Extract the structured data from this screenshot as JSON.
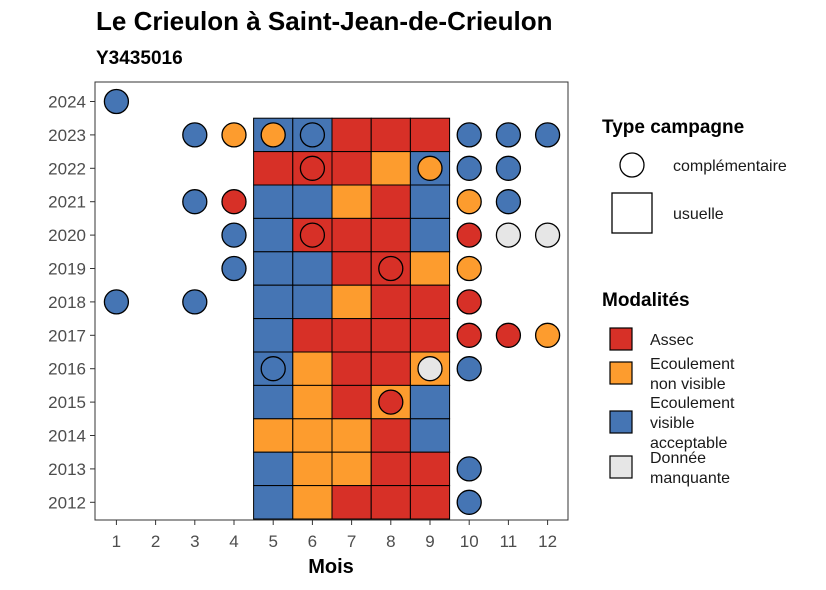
{
  "chart_data": {
    "type": "heatmap",
    "title": "Le Crieulon à Saint-Jean-de-Crieulon",
    "subtitle": "Y3435016",
    "xlabel": "Mois",
    "ylabel": "",
    "x_ticks": [
      "1",
      "2",
      "3",
      "4",
      "5",
      "6",
      "7",
      "8",
      "9",
      "10",
      "11",
      "12"
    ],
    "y_ticks": [
      "2012",
      "2013",
      "2014",
      "2015",
      "2016",
      "2017",
      "2018",
      "2019",
      "2020",
      "2021",
      "2022",
      "2023",
      "2024"
    ],
    "colors": {
      "Assec": "#d73027",
      "Ecoulement non visible": "#fd9c2e",
      "Ecoulement visible acceptable": "#4575b4",
      "Donnée manquante": "#e6e6e6"
    },
    "legend_type": {
      "title": "Type campagne",
      "items": [
        {
          "label": "complémentaire",
          "shape": "circle"
        },
        {
          "label": "usuelle",
          "shape": "square"
        }
      ]
    },
    "legend_modalites": {
      "title": "Modalités",
      "items": [
        {
          "key": "Assec",
          "lines": [
            "Assec"
          ]
        },
        {
          "key": "Ecoulement non visible",
          "lines": [
            "Ecoulement",
            "non visible"
          ]
        },
        {
          "key": "Ecoulement visible acceptable",
          "lines": [
            "Ecoulement",
            "visible",
            "acceptable"
          ]
        },
        {
          "key": "Donnée manquante",
          "lines": [
            "Donnée",
            "manquante"
          ]
        }
      ]
    },
    "usuelle": [
      {
        "year": 2023,
        "month": 5,
        "value": "Ecoulement visible acceptable"
      },
      {
        "year": 2023,
        "month": 6,
        "value": "Ecoulement visible acceptable"
      },
      {
        "year": 2023,
        "month": 7,
        "value": "Assec"
      },
      {
        "year": 2023,
        "month": 8,
        "value": "Assec"
      },
      {
        "year": 2023,
        "month": 9,
        "value": "Assec"
      },
      {
        "year": 2022,
        "month": 5,
        "value": "Assec"
      },
      {
        "year": 2022,
        "month": 6,
        "value": "Assec"
      },
      {
        "year": 2022,
        "month": 7,
        "value": "Assec"
      },
      {
        "year": 2022,
        "month": 8,
        "value": "Ecoulement non visible"
      },
      {
        "year": 2022,
        "month": 9,
        "value": "Ecoulement visible acceptable"
      },
      {
        "year": 2021,
        "month": 5,
        "value": "Ecoulement visible acceptable"
      },
      {
        "year": 2021,
        "month": 6,
        "value": "Ecoulement visible acceptable"
      },
      {
        "year": 2021,
        "month": 7,
        "value": "Ecoulement non visible"
      },
      {
        "year": 2021,
        "month": 8,
        "value": "Assec"
      },
      {
        "year": 2021,
        "month": 9,
        "value": "Ecoulement visible acceptable"
      },
      {
        "year": 2020,
        "month": 5,
        "value": "Ecoulement visible acceptable"
      },
      {
        "year": 2020,
        "month": 6,
        "value": "Assec"
      },
      {
        "year": 2020,
        "month": 7,
        "value": "Assec"
      },
      {
        "year": 2020,
        "month": 8,
        "value": "Assec"
      },
      {
        "year": 2020,
        "month": 9,
        "value": "Ecoulement visible acceptable"
      },
      {
        "year": 2019,
        "month": 5,
        "value": "Ecoulement visible acceptable"
      },
      {
        "year": 2019,
        "month": 6,
        "value": "Ecoulement visible acceptable"
      },
      {
        "year": 2019,
        "month": 7,
        "value": "Assec"
      },
      {
        "year": 2019,
        "month": 8,
        "value": "Assec"
      },
      {
        "year": 2019,
        "month": 9,
        "value": "Ecoulement non visible"
      },
      {
        "year": 2018,
        "month": 5,
        "value": "Ecoulement visible acceptable"
      },
      {
        "year": 2018,
        "month": 6,
        "value": "Ecoulement visible acceptable"
      },
      {
        "year": 2018,
        "month": 7,
        "value": "Ecoulement non visible"
      },
      {
        "year": 2018,
        "month": 8,
        "value": "Assec"
      },
      {
        "year": 2018,
        "month": 9,
        "value": "Assec"
      },
      {
        "year": 2017,
        "month": 5,
        "value": "Ecoulement visible acceptable"
      },
      {
        "year": 2017,
        "month": 6,
        "value": "Assec"
      },
      {
        "year": 2017,
        "month": 7,
        "value": "Assec"
      },
      {
        "year": 2017,
        "month": 8,
        "value": "Assec"
      },
      {
        "year": 2017,
        "month": 9,
        "value": "Assec"
      },
      {
        "year": 2016,
        "month": 5,
        "value": "Ecoulement visible acceptable"
      },
      {
        "year": 2016,
        "month": 6,
        "value": "Ecoulement non visible"
      },
      {
        "year": 2016,
        "month": 7,
        "value": "Assec"
      },
      {
        "year": 2016,
        "month": 8,
        "value": "Assec"
      },
      {
        "year": 2016,
        "month": 9,
        "value": "Ecoulement non visible"
      },
      {
        "year": 2015,
        "month": 5,
        "value": "Ecoulement visible acceptable"
      },
      {
        "year": 2015,
        "month": 6,
        "value": "Ecoulement non visible"
      },
      {
        "year": 2015,
        "month": 7,
        "value": "Assec"
      },
      {
        "year": 2015,
        "month": 8,
        "value": "Ecoulement non visible"
      },
      {
        "year": 2015,
        "month": 9,
        "value": "Ecoulement visible acceptable"
      },
      {
        "year": 2014,
        "month": 5,
        "value": "Ecoulement non visible"
      },
      {
        "year": 2014,
        "month": 6,
        "value": "Ecoulement non visible"
      },
      {
        "year": 2014,
        "month": 7,
        "value": "Ecoulement non visible"
      },
      {
        "year": 2014,
        "month": 8,
        "value": "Assec"
      },
      {
        "year": 2014,
        "month": 9,
        "value": "Ecoulement visible acceptable"
      },
      {
        "year": 2013,
        "month": 5,
        "value": "Ecoulement visible acceptable"
      },
      {
        "year": 2013,
        "month": 6,
        "value": "Ecoulement non visible"
      },
      {
        "year": 2013,
        "month": 7,
        "value": "Ecoulement non visible"
      },
      {
        "year": 2013,
        "month": 8,
        "value": "Assec"
      },
      {
        "year": 2013,
        "month": 9,
        "value": "Assec"
      },
      {
        "year": 2012,
        "month": 5,
        "value": "Ecoulement visible acceptable"
      },
      {
        "year": 2012,
        "month": 6,
        "value": "Ecoulement non visible"
      },
      {
        "year": 2012,
        "month": 7,
        "value": "Assec"
      },
      {
        "year": 2012,
        "month": 8,
        "value": "Assec"
      },
      {
        "year": 2012,
        "month": 9,
        "value": "Assec"
      }
    ],
    "complementaire": [
      {
        "year": 2024,
        "month": 1,
        "value": "Ecoulement visible acceptable"
      },
      {
        "year": 2023,
        "month": 3,
        "value": "Ecoulement visible acceptable"
      },
      {
        "year": 2023,
        "month": 4,
        "value": "Ecoulement non visible"
      },
      {
        "year": 2023,
        "month": 5,
        "value": "Ecoulement non visible"
      },
      {
        "year": 2023,
        "month": 6,
        "value": "Ecoulement visible acceptable"
      },
      {
        "year": 2023,
        "month": 10,
        "value": "Ecoulement visible acceptable"
      },
      {
        "year": 2023,
        "month": 11,
        "value": "Ecoulement visible acceptable"
      },
      {
        "year": 2023,
        "month": 12,
        "value": "Ecoulement visible acceptable"
      },
      {
        "year": 2022,
        "month": 6,
        "value": "Assec"
      },
      {
        "year": 2022,
        "month": 9,
        "value": "Ecoulement non visible"
      },
      {
        "year": 2022,
        "month": 10,
        "value": "Ecoulement visible acceptable"
      },
      {
        "year": 2022,
        "month": 11,
        "value": "Ecoulement visible acceptable"
      },
      {
        "year": 2021,
        "month": 3,
        "value": "Ecoulement visible acceptable"
      },
      {
        "year": 2021,
        "month": 4,
        "value": "Assec"
      },
      {
        "year": 2021,
        "month": 10,
        "value": "Ecoulement non visible"
      },
      {
        "year": 2021,
        "month": 11,
        "value": "Ecoulement visible acceptable"
      },
      {
        "year": 2020,
        "month": 4,
        "value": "Ecoulement visible acceptable"
      },
      {
        "year": 2020,
        "month": 6,
        "value": "Assec"
      },
      {
        "year": 2020,
        "month": 10,
        "value": "Assec"
      },
      {
        "year": 2020,
        "month": 11,
        "value": "Donnée manquante"
      },
      {
        "year": 2020,
        "month": 12,
        "value": "Donnée manquante"
      },
      {
        "year": 2019,
        "month": 4,
        "value": "Ecoulement visible acceptable"
      },
      {
        "year": 2019,
        "month": 8,
        "value": "Assec"
      },
      {
        "year": 2019,
        "month": 10,
        "value": "Ecoulement non visible"
      },
      {
        "year": 2018,
        "month": 1,
        "value": "Ecoulement visible acceptable"
      },
      {
        "year": 2018,
        "month": 3,
        "value": "Ecoulement visible acceptable"
      },
      {
        "year": 2018,
        "month": 10,
        "value": "Assec"
      },
      {
        "year": 2017,
        "month": 10,
        "value": "Assec"
      },
      {
        "year": 2017,
        "month": 11,
        "value": "Assec"
      },
      {
        "year": 2017,
        "month": 12,
        "value": "Ecoulement non visible"
      },
      {
        "year": 2016,
        "month": 5,
        "value": "Ecoulement visible acceptable"
      },
      {
        "year": 2016,
        "month": 9,
        "value": "Donnée manquante"
      },
      {
        "year": 2016,
        "month": 10,
        "value": "Ecoulement visible acceptable"
      },
      {
        "year": 2015,
        "month": 8,
        "value": "Assec"
      },
      {
        "year": 2013,
        "month": 10,
        "value": "Ecoulement visible acceptable"
      },
      {
        "year": 2012,
        "month": 10,
        "value": "Ecoulement visible acceptable"
      }
    ]
  }
}
